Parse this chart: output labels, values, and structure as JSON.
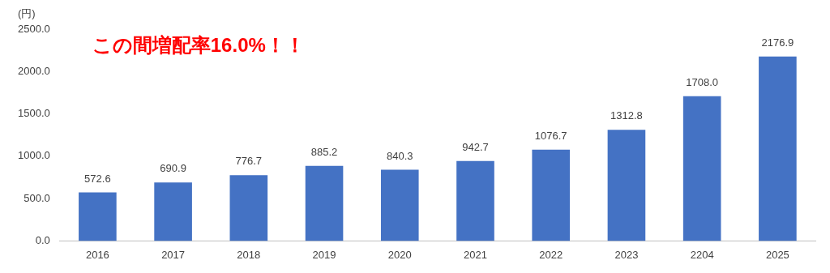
{
  "chart_data": {
    "type": "bar",
    "ylabel": "(円)",
    "annotations": [
      "この間増配率16.0%！！"
    ],
    "categories": [
      "2016",
      "2017",
      "2018",
      "2019",
      "2020",
      "2021",
      "2022",
      "2023",
      "2204",
      "2025"
    ],
    "values": [
      572.6,
      690.9,
      776.7,
      885.2,
      840.3,
      942.7,
      1076.7,
      1312.8,
      1708.0,
      2176.9
    ],
    "color": "#4472c4",
    "ylim": [
      0,
      2500
    ],
    "yticks": [
      {
        "value": 0,
        "label": "0.0"
      },
      {
        "value": 500,
        "label": "500.0"
      },
      {
        "value": 1000,
        "label": "1000.0"
      },
      {
        "value": 1500,
        "label": "1500.0"
      },
      {
        "value": 2000,
        "label": "2000.0"
      },
      {
        "value": 2500,
        "label": "2500.0"
      }
    ],
    "value_labels": [
      "572.6",
      "690.9",
      "776.7",
      "885.2",
      "840.3",
      "942.7",
      "1076.7",
      "1312.8",
      "1708.0",
      "2176.9"
    ],
    "grid": false,
    "legend": false
  }
}
